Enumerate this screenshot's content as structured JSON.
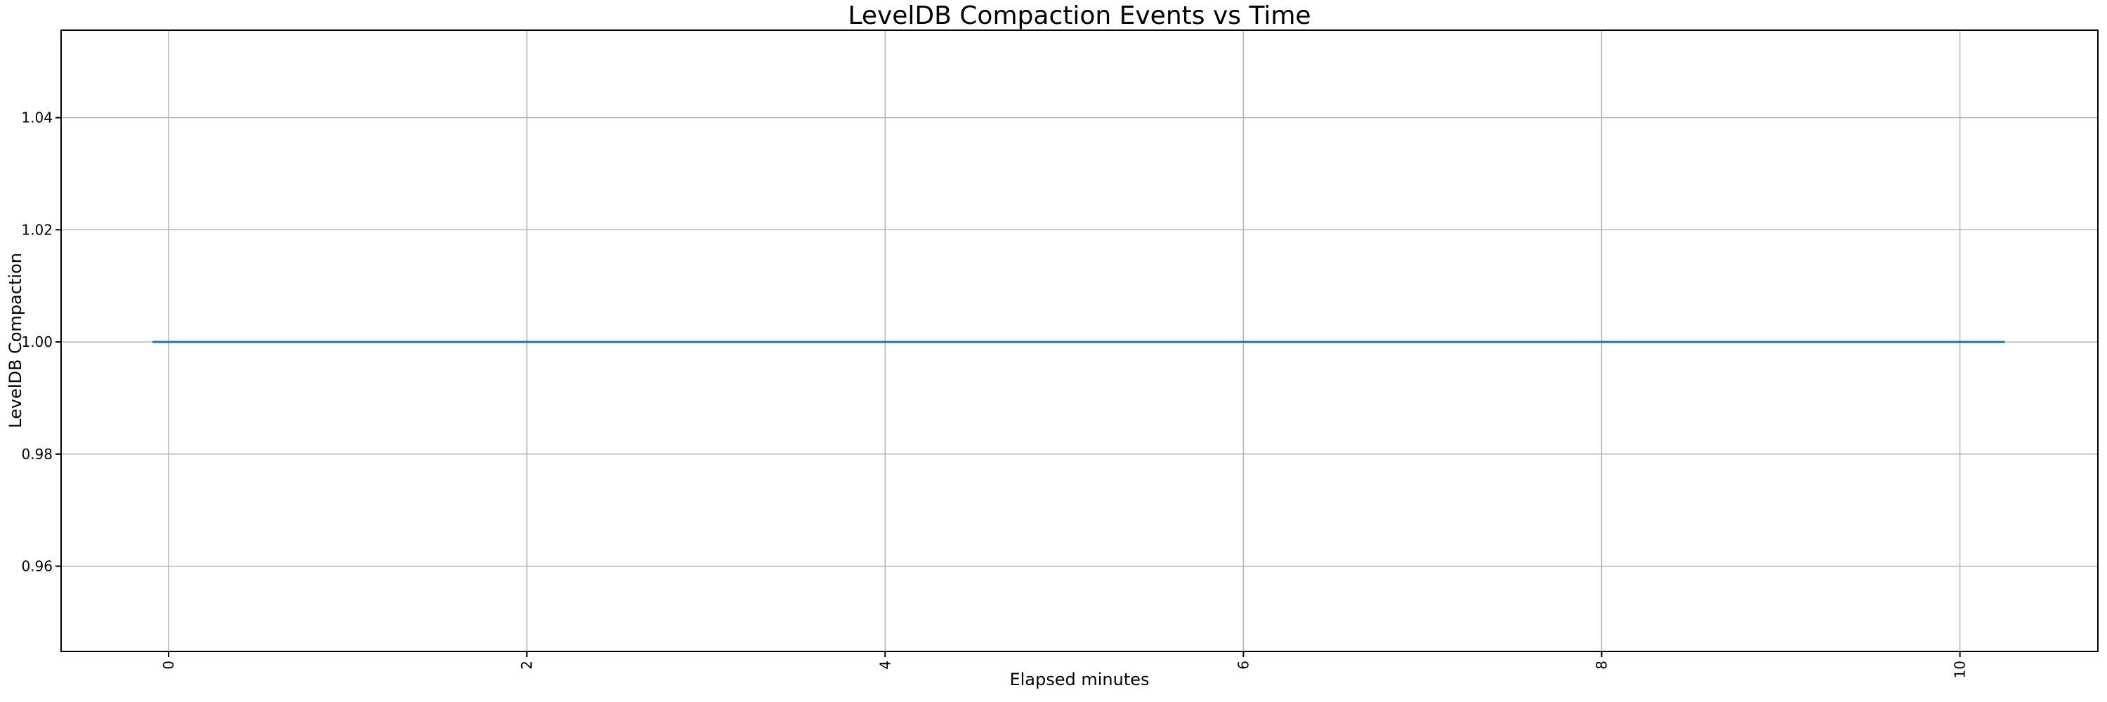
{
  "figure": {
    "title": "LevelDB Compaction Events vs Time"
  },
  "chart_data": {
    "type": "line",
    "title": "LevelDB Compaction Events vs Time",
    "xlabel": "Elapsed minutes",
    "ylabel": "LevelDB Compaction",
    "xlim": [
      -0.6,
      10.77
    ],
    "ylim": [
      0.9448,
      1.0556
    ],
    "x_ticks": [
      0,
      2,
      4,
      6,
      8,
      10
    ],
    "x_tick_labels": [
      "0",
      "2",
      "4",
      "6",
      "8",
      "10"
    ],
    "x_tick_rotation_deg": 90,
    "y_ticks": [
      0.96,
      0.98,
      1.0,
      1.02,
      1.04
    ],
    "y_tick_labels": [
      "0.96",
      "0.98",
      "1.00",
      "1.02",
      "1.04"
    ],
    "grid": true,
    "legend": "none",
    "series": [
      {
        "name": "LevelDB Compaction",
        "color": "#1f77b4",
        "x": [
          -0.09,
          10.25
        ],
        "y": [
          1.0,
          1.0
        ],
        "description": "constant value 1.00 across the entire elapsed time (flat horizontal line)"
      }
    ]
  },
  "colors": {
    "line": "#1f77b4",
    "grid": "#b0b0b0",
    "spine": "#000000",
    "text": "#000000",
    "background": "#ffffff"
  }
}
